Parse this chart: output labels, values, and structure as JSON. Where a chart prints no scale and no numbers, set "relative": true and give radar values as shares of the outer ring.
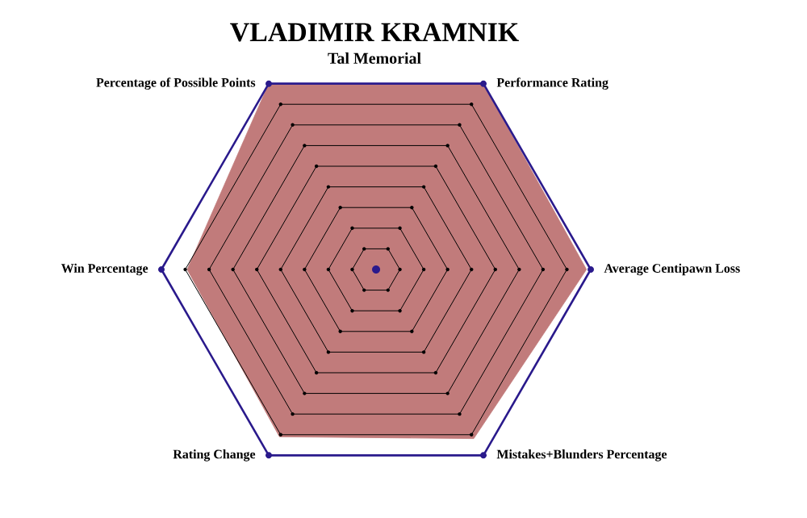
{
  "chart_data": {
    "type": "radar",
    "title": "VLADIMIR KRAMNIK",
    "subtitle": "Tal Memorial",
    "categories": [
      "Performance Rating",
      "Average Centipawn Loss",
      "Mistakes+Blunders Percentage",
      "Rating Change",
      "Win Percentage",
      "Percentage of Possible Points"
    ],
    "relative": true,
    "grid": true,
    "series": [
      {
        "color": "#c17b7b",
        "values": [
          1,
          0.98,
          0.91,
          0.9,
          0.88,
          1
        ]
      }
    ]
  }
}
